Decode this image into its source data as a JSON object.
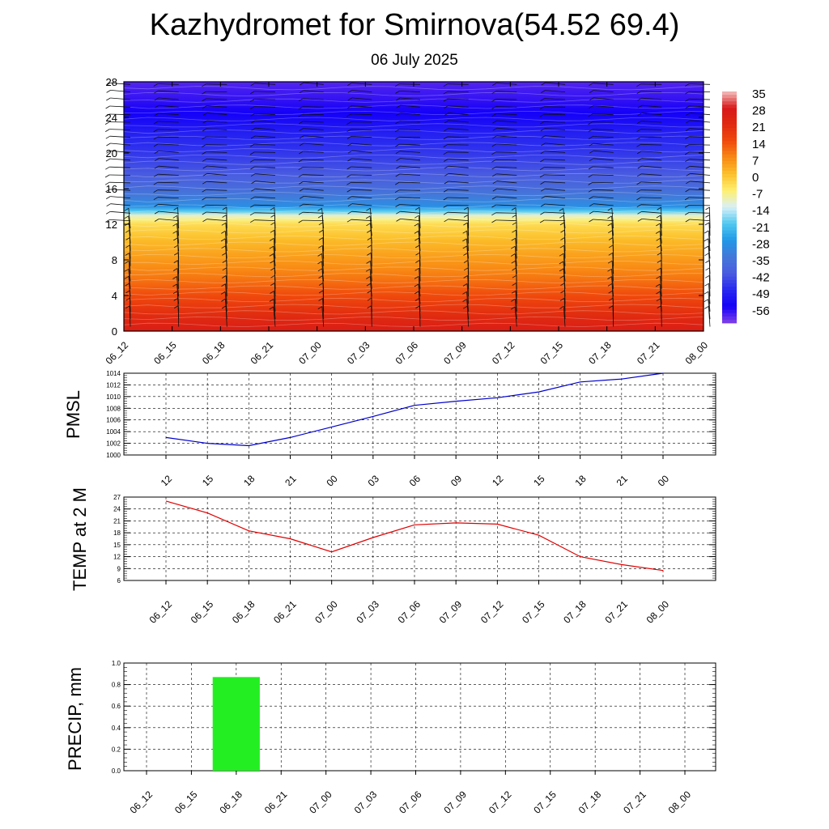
{
  "header": {
    "title": "Kazhydromet for Smirnova(54.52 69.4)",
    "date": "06 July 2025"
  },
  "time_labels": [
    "06_12",
    "06_15",
    "06_18",
    "06_21",
    "07_00",
    "07_03",
    "07_06",
    "07_09",
    "07_12",
    "07_15",
    "07_18",
    "07_21",
    "08_00"
  ],
  "colorbar": {
    "labels": [
      "35",
      "28",
      "21",
      "14",
      "7",
      "0",
      "-7",
      "-14",
      "-21",
      "-28",
      "-35",
      "-42",
      "-49",
      "-56"
    ],
    "stops": [
      {
        "v": 35,
        "c": "#f4c0c0"
      },
      {
        "v": 28,
        "c": "#d81818"
      },
      {
        "v": 21,
        "c": "#e02a10"
      },
      {
        "v": 14,
        "c": "#f04a0c"
      },
      {
        "v": 7,
        "c": "#f88a14"
      },
      {
        "v": 0,
        "c": "#fcc02a"
      },
      {
        "v": -7,
        "c": "#fff070"
      },
      {
        "v": -14,
        "c": "#d8f0f8"
      },
      {
        "v": -21,
        "c": "#50c8f0"
      },
      {
        "v": -28,
        "c": "#2098e8"
      },
      {
        "v": -35,
        "c": "#4478d8"
      },
      {
        "v": -42,
        "c": "#4a5ce0"
      },
      {
        "v": -49,
        "c": "#2828f0"
      },
      {
        "v": -56,
        "c": "#1400f8"
      },
      {
        "v": -63,
        "c": "#8040e8"
      }
    ]
  },
  "chart_data": [
    {
      "type": "heatmap",
      "ylim": [
        0,
        28
      ],
      "yticks": [
        0,
        4,
        8,
        12,
        16,
        20,
        24,
        28
      ],
      "x": [
        "06_12",
        "06_15",
        "06_18",
        "06_21",
        "07_00",
        "07_03",
        "07_06",
        "07_09",
        "07_12",
        "07_15",
        "07_18",
        "07_21",
        "08_00"
      ],
      "profile_levels": [
        0,
        2,
        4,
        6,
        8,
        10,
        12,
        13,
        14,
        16,
        18,
        20,
        22,
        24,
        26,
        28
      ],
      "profile_values": [
        26,
        20,
        14,
        9,
        5,
        1,
        -4,
        -12,
        -30,
        -38,
        -43,
        -47,
        -50,
        -55,
        -58,
        -60
      ]
    },
    {
      "type": "line",
      "ylabel": "PMSL",
      "ylim": [
        1000,
        1014
      ],
      "yticks": [
        1000,
        1002,
        1004,
        1006,
        1008,
        1010,
        1012,
        1014
      ],
      "x": [
        "06_12",
        "06_15",
        "06_18",
        "06_21",
        "07_00",
        "07_03",
        "07_06",
        "07_09",
        "07_12",
        "07_15",
        "07_18",
        "07_21",
        "08_00"
      ],
      "series": [
        {
          "values": [
            1003,
            1002,
            1001.6,
            1003,
            1004.8,
            1006.6,
            1008.5,
            1009.2,
            1009.8,
            1010.8,
            1012.5,
            1013,
            1014
          ]
        }
      ],
      "color": "#0000cc"
    },
    {
      "type": "line",
      "ylabel": "TEMP at 2 M",
      "ylim": [
        6,
        27
      ],
      "yticks": [
        6,
        9,
        12,
        15,
        18,
        21,
        24,
        27
      ],
      "x": [
        "06_12",
        "06_15",
        "06_18",
        "06_21",
        "07_00",
        "07_03",
        "07_06",
        "07_09",
        "07_12",
        "07_15",
        "07_18",
        "07_21",
        "08_00"
      ],
      "series": [
        {
          "values": [
            26,
            23,
            18.5,
            16.5,
            13.2,
            16.8,
            20,
            20.5,
            20.2,
            17.4,
            12,
            10,
            8.5
          ]
        }
      ],
      "color": "#e00000"
    },
    {
      "type": "bar",
      "ylabel": "PRECIP, mm",
      "ylim": [
        0,
        1.0
      ],
      "yticks": [
        0.0,
        0.2,
        0.4,
        0.6,
        0.8,
        1.0
      ],
      "x": [
        "06_12",
        "06_15",
        "06_18",
        "06_21",
        "07_00",
        "07_03",
        "07_06",
        "07_09",
        "07_12",
        "07_15",
        "07_18",
        "07_21",
        "08_00"
      ],
      "values": [
        0,
        0,
        0.87,
        0,
        0,
        0,
        0,
        0,
        0,
        0,
        0,
        0,
        0
      ],
      "color": "#22ee22"
    }
  ]
}
